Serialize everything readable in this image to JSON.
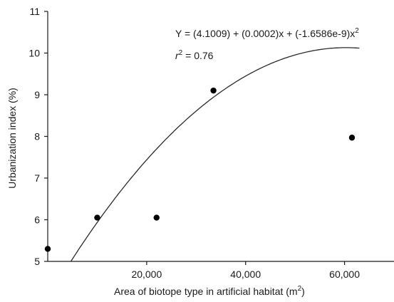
{
  "chart_data": {
    "type": "scatter",
    "xlabel": "Area of biotope type in artificial habitat (m²)",
    "xlabel_parts": {
      "text": "Area of biotope type in artificial habitat (m",
      "sup": "2",
      "close": ")"
    },
    "ylabel": "Urbanization index (%)",
    "xlim": [
      0,
      70000
    ],
    "ylim": [
      5,
      11
    ],
    "x_ticks": [
      20000,
      40000,
      60000
    ],
    "x_tick_labels": [
      "20,000",
      "40,000",
      "60,000"
    ],
    "y_ticks": [
      5,
      6,
      7,
      8,
      9,
      10,
      11
    ],
    "y_tick_labels": [
      "5",
      "6",
      "7",
      "8",
      "9",
      "10",
      "11"
    ],
    "grid": false,
    "series": [
      {
        "x": [
          0,
          10000,
          22000,
          33500,
          61500
        ],
        "y": [
          5.3,
          6.05,
          6.05,
          9.1,
          7.97
        ]
      }
    ],
    "fit": {
      "equation": {
        "main": "Y = (4.1009) + (0.0002)x + (-1.6586e-9)x",
        "sup": "2"
      },
      "r2": {
        "var": "r",
        "sup": "2",
        "rest": " = 0.76"
      },
      "coefficients": [
        4.1009,
        0.0002,
        -1.6586e-09
      ],
      "x_range": [
        0,
        63000
      ]
    }
  }
}
